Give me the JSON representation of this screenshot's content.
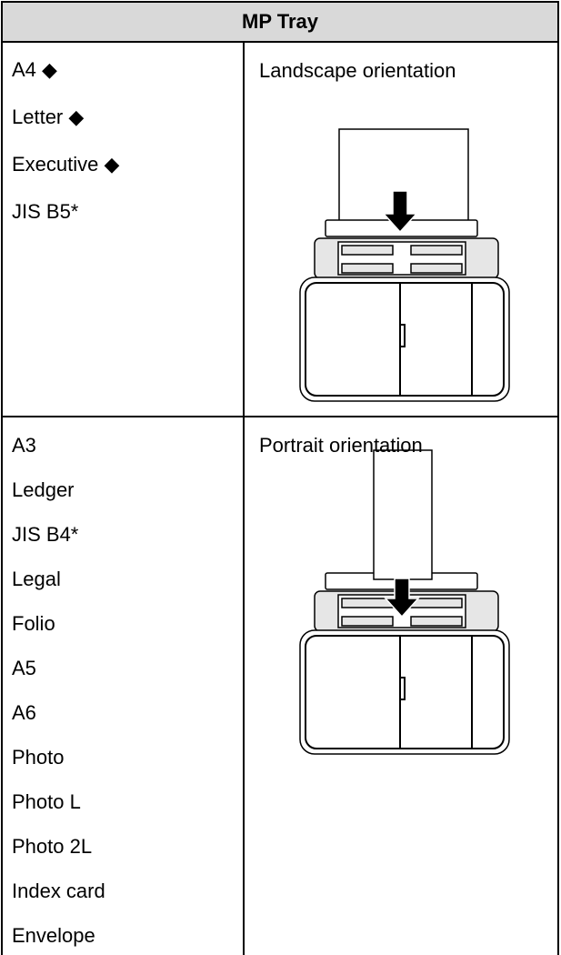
{
  "table": {
    "header": "MP Tray",
    "rows": [
      {
        "sizes": [
          "A4 ◆",
          "Letter ◆",
          "Executive ◆",
          "JIS B5*"
        ],
        "orientation": "Landscape orientation"
      },
      {
        "sizes": [
          "A3",
          "Ledger",
          "JIS B4*",
          "Legal",
          "Folio",
          "A5",
          "A6",
          "Photo",
          "Photo L",
          "Photo 2L",
          "Index card",
          "Envelope"
        ],
        "orientation": "Portrait orientation"
      }
    ]
  }
}
